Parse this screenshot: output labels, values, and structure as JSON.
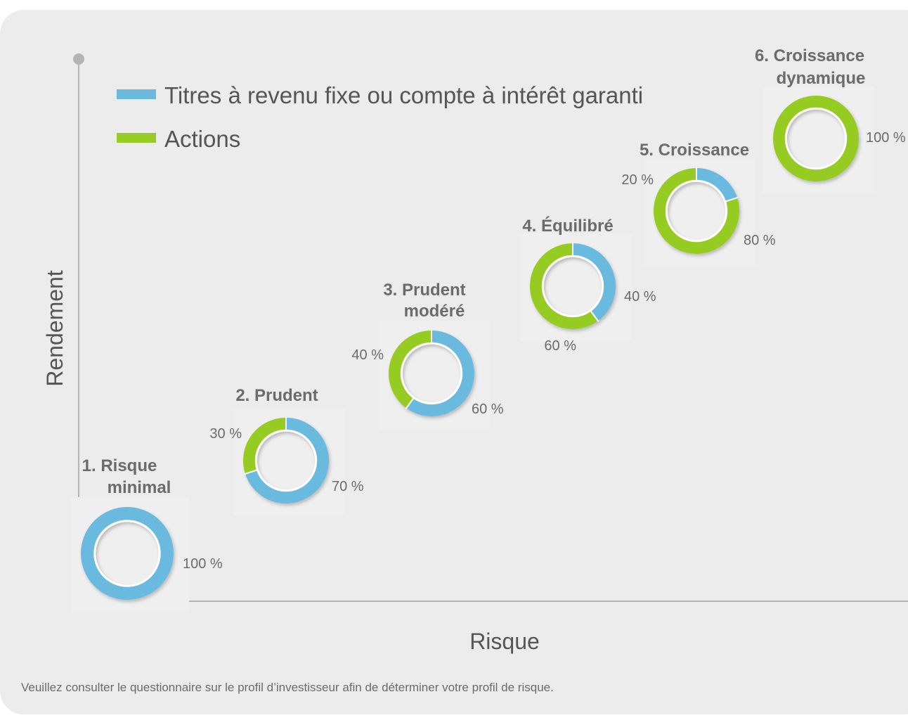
{
  "colors": {
    "fixed_income": "#6bb9df",
    "equities": "#96cc24",
    "axis": "#b4b4b4",
    "panel": "#ececec"
  },
  "chart_data": {
    "type": "donut-scatter",
    "xlabel": "Risque",
    "ylabel": "Rendement",
    "legend": [
      {
        "key": "fixed_income",
        "label": "Titres à revenu fixe ou compte à intérêt garanti"
      },
      {
        "key": "equities",
        "label": "Actions"
      }
    ],
    "profiles": [
      {
        "name": [
          "1. Risque",
          "minimal"
        ],
        "risk": 1,
        "fixed_income": 100,
        "equities": 0,
        "pct_labels": {
          "fixed_income": "100 %"
        }
      },
      {
        "name": [
          "2. Prudent"
        ],
        "risk": 2,
        "fixed_income": 70,
        "equities": 30,
        "pct_labels": {
          "fixed_income": "70 %",
          "equities": "30 %"
        }
      },
      {
        "name": [
          "3. Prudent",
          "modéré"
        ],
        "risk": 3,
        "fixed_income": 60,
        "equities": 40,
        "pct_labels": {
          "fixed_income": "60 %",
          "equities": "40 %"
        }
      },
      {
        "name": [
          "4. Équilibré"
        ],
        "risk": 4,
        "fixed_income": 40,
        "equities": 60,
        "pct_labels": {
          "fixed_income": "40 %",
          "equities": "60 %"
        }
      },
      {
        "name": [
          "5. Croissance"
        ],
        "risk": 5,
        "fixed_income": 20,
        "equities": 80,
        "pct_labels": {
          "fixed_income": "20 %",
          "equities": "80 %"
        }
      },
      {
        "name": [
          "6. Croissance",
          "dynamique"
        ],
        "risk": 6,
        "fixed_income": 0,
        "equities": 100,
        "pct_labels": {
          "equities": "100 %"
        }
      }
    ]
  },
  "footnote": "Veuillez consulter le questionnaire sur le profil d’investisseur afin de déterminer votre profil de risque."
}
